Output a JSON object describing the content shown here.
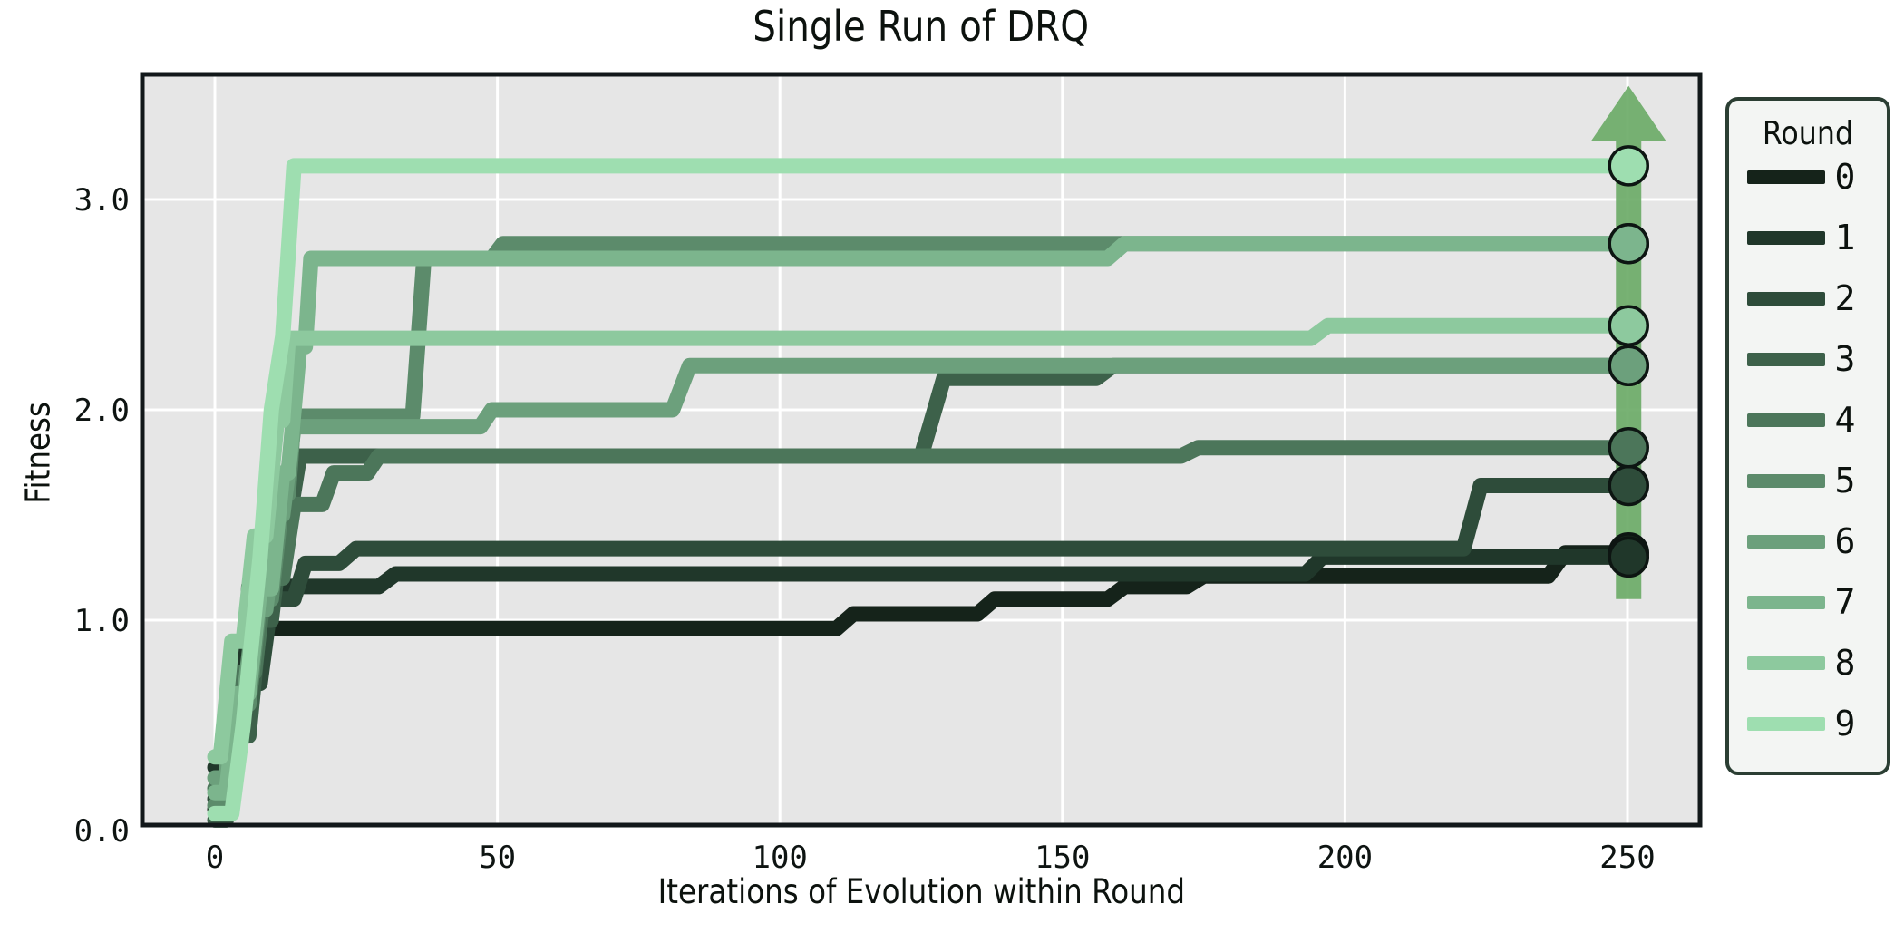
{
  "figure": {
    "title": "Single Run of DRQ",
    "xlabel": "Iterations of Evolution within Round",
    "ylabel": "Fitness"
  },
  "legend": {
    "title": "Round",
    "entries": [
      "0",
      "1",
      "2",
      "3",
      "4",
      "5",
      "6",
      "7",
      "8",
      "9"
    ]
  },
  "chart_data": {
    "type": "line",
    "title": "Single Run of DRQ",
    "xlabel": "Iterations of Evolution within Round",
    "ylabel": "Fitness",
    "xlim": [
      -13,
      263
    ],
    "ylim": [
      0,
      3.6
    ],
    "xticks": [
      "0",
      "50",
      "100",
      "150",
      "200",
      "250"
    ],
    "xtick_values": [
      0,
      50,
      100,
      150,
      200,
      250
    ],
    "yticks": [
      "0.0",
      "1.0",
      "2.0",
      "3.0"
    ],
    "ytick_values": [
      0,
      1,
      2,
      3
    ],
    "grid": true,
    "legend_title": "Round",
    "legend_position": "right",
    "plot_background": "#e6e6e6",
    "gridline_color": "#ffffff",
    "spine_color": "#12181a",
    "line_width": 17,
    "marker_radius": 21,
    "marker_edge_color": "#0d1512",
    "arrow": {
      "x": 250.2,
      "y_start": 1.1,
      "head_base": 3.28,
      "y_tip": 3.54,
      "shaft_half_width": 14,
      "head_half_width": 41,
      "color": "#6cab68"
    },
    "series": [
      {
        "name": "0",
        "color": "#15231a",
        "final_fitness": 1.32,
        "points": [
          [
            0,
            0.1
          ],
          [
            2,
            0.1
          ],
          [
            4,
            0.55
          ],
          [
            6,
            0.8
          ],
          [
            8,
            0.96
          ],
          [
            110,
            0.96
          ],
          [
            113,
            1.03
          ],
          [
            135,
            1.03
          ],
          [
            138,
            1.1
          ],
          [
            158,
            1.1
          ],
          [
            161,
            1.16
          ],
          [
            172,
            1.16
          ],
          [
            175,
            1.21
          ],
          [
            236,
            1.21
          ],
          [
            239,
            1.32
          ],
          [
            250,
            1.32
          ]
        ]
      },
      {
        "name": "1",
        "color": "#20372a",
        "final_fitness": 1.3,
        "points": [
          [
            0,
            0.3
          ],
          [
            2,
            0.3
          ],
          [
            3,
            0.62
          ],
          [
            5,
            0.62
          ],
          [
            6,
            1.16
          ],
          [
            29,
            1.16
          ],
          [
            32,
            1.22
          ],
          [
            193,
            1.22
          ],
          [
            196,
            1.3
          ],
          [
            250,
            1.3
          ]
        ]
      },
      {
        "name": "2",
        "color": "#2e4c3a",
        "final_fitness": 1.64,
        "points": [
          [
            0,
            0.15
          ],
          [
            2,
            0.15
          ],
          [
            4,
            0.7
          ],
          [
            8,
            0.7
          ],
          [
            10,
            1.1
          ],
          [
            14,
            1.1
          ],
          [
            16,
            1.27
          ],
          [
            22,
            1.27
          ],
          [
            25,
            1.34
          ],
          [
            221,
            1.34
          ],
          [
            224,
            1.64
          ],
          [
            250,
            1.64
          ]
        ]
      },
      {
        "name": "3",
        "color": "#3d614a",
        "final_fitness": 2.21,
        "points": [
          [
            0,
            0.05
          ],
          [
            2,
            0.05
          ],
          [
            4,
            0.45
          ],
          [
            6,
            0.45
          ],
          [
            8,
            1.0
          ],
          [
            10,
            1.0
          ],
          [
            12,
            1.45
          ],
          [
            13,
            1.45
          ],
          [
            15,
            1.78
          ],
          [
            125,
            1.78
          ],
          [
            129,
            2.15
          ],
          [
            156,
            2.15
          ],
          [
            159,
            2.21
          ],
          [
            250,
            2.21
          ]
        ]
      },
      {
        "name": "4",
        "color": "#4c765a",
        "final_fitness": 1.82,
        "points": [
          [
            0,
            0.2
          ],
          [
            2,
            0.2
          ],
          [
            4,
            0.75
          ],
          [
            7,
            0.75
          ],
          [
            9,
            1.2
          ],
          [
            12,
            1.2
          ],
          [
            14,
            1.55
          ],
          [
            19,
            1.55
          ],
          [
            21,
            1.7
          ],
          [
            27,
            1.7
          ],
          [
            29,
            1.78
          ],
          [
            171,
            1.78
          ],
          [
            174,
            1.82
          ],
          [
            250,
            1.82
          ]
        ]
      },
      {
        "name": "5",
        "color": "#5c8b6b",
        "final_fitness": 2.79,
        "points": [
          [
            0,
            0.12
          ],
          [
            2,
            0.12
          ],
          [
            4,
            0.6
          ],
          [
            6,
            0.6
          ],
          [
            8,
            1.1
          ],
          [
            10,
            1.1
          ],
          [
            12,
            1.6
          ],
          [
            13,
            1.6
          ],
          [
            14,
            1.97
          ],
          [
            35,
            1.97
          ],
          [
            37,
            2.72
          ],
          [
            49,
            2.72
          ],
          [
            51,
            2.79
          ],
          [
            250,
            2.79
          ]
        ]
      },
      {
        "name": "6",
        "color": "#6ca07c",
        "final_fitness": 2.21,
        "points": [
          [
            0,
            0.25
          ],
          [
            2,
            0.25
          ],
          [
            3,
            0.6
          ],
          [
            5,
            0.6
          ],
          [
            7,
            1.05
          ],
          [
            9,
            1.05
          ],
          [
            11,
            1.5
          ],
          [
            12,
            1.5
          ],
          [
            14,
            1.92
          ],
          [
            47,
            1.92
          ],
          [
            49,
            2.0
          ],
          [
            81,
            2.0
          ],
          [
            84,
            2.21
          ],
          [
            250,
            2.21
          ]
        ]
      },
      {
        "name": "7",
        "color": "#7cb58d",
        "final_fitness": 2.79,
        "points": [
          [
            0,
            0.18
          ],
          [
            2,
            0.18
          ],
          [
            4,
            0.65
          ],
          [
            6,
            0.65
          ],
          [
            8,
            1.15
          ],
          [
            10,
            1.15
          ],
          [
            12,
            1.7
          ],
          [
            13,
            1.7
          ],
          [
            15,
            2.3
          ],
          [
            16,
            2.3
          ],
          [
            17,
            2.72
          ],
          [
            158,
            2.72
          ],
          [
            161,
            2.79
          ],
          [
            250,
            2.79
          ]
        ]
      },
      {
        "name": "8",
        "color": "#8dc99e",
        "final_fitness": 2.4,
        "points": [
          [
            0,
            0.35
          ],
          [
            1,
            0.35
          ],
          [
            3,
            0.9
          ],
          [
            5,
            0.9
          ],
          [
            7,
            1.4
          ],
          [
            9,
            1.4
          ],
          [
            11,
            1.95
          ],
          [
            12,
            1.95
          ],
          [
            13,
            2.34
          ],
          [
            194,
            2.34
          ],
          [
            197,
            2.4
          ],
          [
            250,
            2.4
          ]
        ]
      },
      {
        "name": "9",
        "color": "#9edeb0",
        "final_fitness": 3.16,
        "points": [
          [
            0,
            0.08
          ],
          [
            3,
            0.08
          ],
          [
            5,
            0.5
          ],
          [
            8,
            1.3
          ],
          [
            10,
            2.0
          ],
          [
            12,
            2.35
          ],
          [
            13,
            2.75
          ],
          [
            14,
            3.16
          ],
          [
            250,
            3.16
          ]
        ]
      }
    ]
  }
}
